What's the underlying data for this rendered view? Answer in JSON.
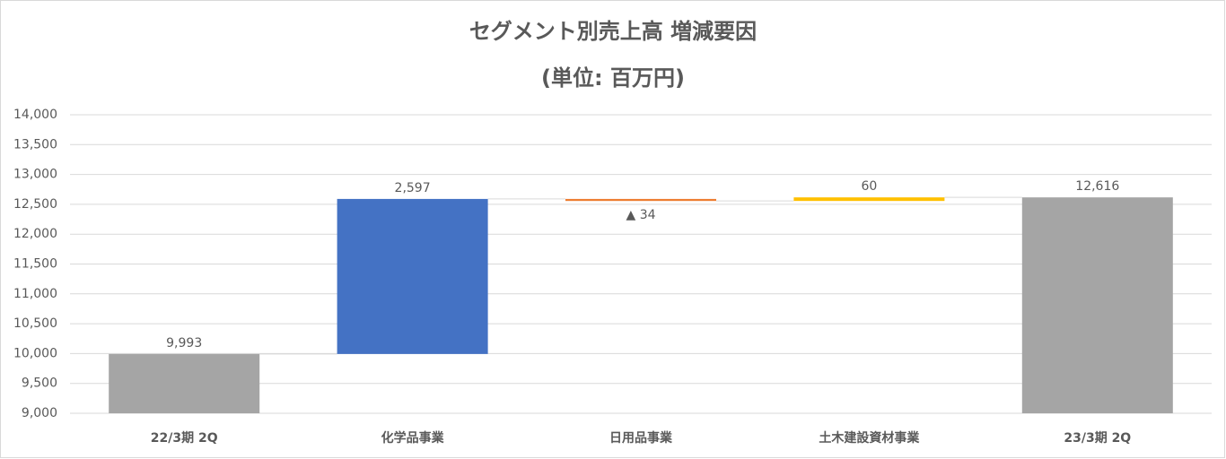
{
  "chart_data": {
    "type": "waterfall",
    "title": "セグメント別売上高 増減要因",
    "subtitle": "(単位: 百万円)",
    "categories": [
      "22/3期 2Q",
      "化学品事業",
      "日用品事業",
      "土木建設資材事業",
      "23/3期 2Q"
    ],
    "values": [
      9993,
      2597,
      -34,
      60,
      12616
    ],
    "value_labels": [
      "9,993",
      "2,597",
      "▲ 34",
      "60",
      "12,616"
    ],
    "measure": [
      "absolute",
      "relative",
      "relative",
      "relative",
      "absolute"
    ],
    "colors": [
      "#a5a5a5",
      "#4472c4",
      "#ed7d31",
      "#ffc000",
      "#a5a5a5"
    ],
    "ylim": [
      9000,
      14000
    ],
    "yticks": [
      {
        "value": 9000,
        "label": "9,000"
      },
      {
        "value": 9500,
        "label": "9,500"
      },
      {
        "value": 10000,
        "label": "10,000"
      },
      {
        "value": 10500,
        "label": "10,500"
      },
      {
        "value": 11000,
        "label": "11,000"
      },
      {
        "value": 11500,
        "label": "11,500"
      },
      {
        "value": 12000,
        "label": "12,000"
      },
      {
        "value": 12500,
        "label": "12,500"
      },
      {
        "value": 13000,
        "label": "13,000"
      },
      {
        "value": 13500,
        "label": "13,500"
      },
      {
        "value": 14000,
        "label": "14,000"
      }
    ],
    "grid": true
  }
}
